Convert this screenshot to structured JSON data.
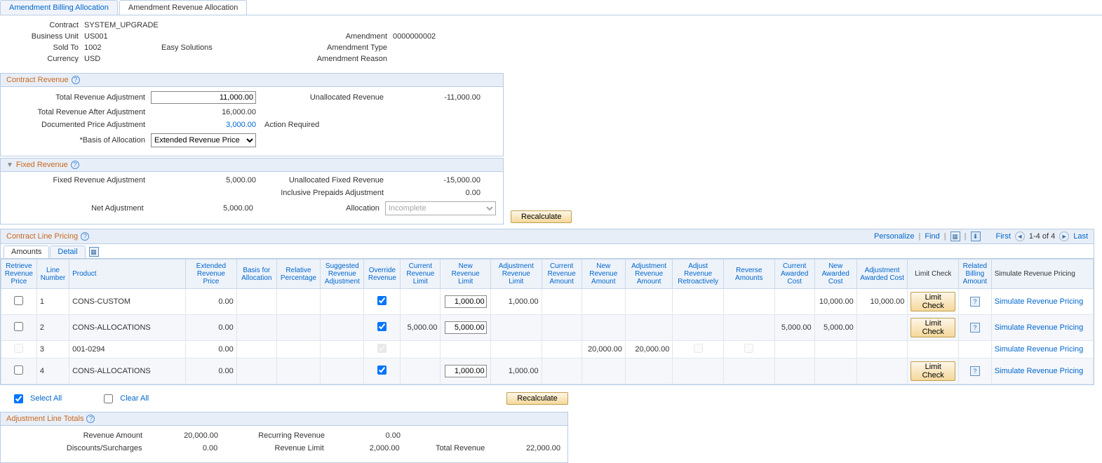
{
  "tabs": {
    "billing": "Amendment Billing Allocation",
    "revenue": "Amendment Revenue Allocation"
  },
  "header": {
    "contract_label": "Contract",
    "contract": "SYSTEM_UPGRADE",
    "bu_label": "Business Unit",
    "bu": "US001",
    "amendment_label": "Amendment",
    "amendment": "0000000002",
    "sold_to_label": "Sold To",
    "sold_to": "1002",
    "sold_to_name": "Easy Solutions",
    "amendment_type_label": "Amendment Type",
    "amendment_type": "",
    "currency_label": "Currency",
    "currency": "USD",
    "amendment_reason_label": "Amendment Reason",
    "amendment_reason": ""
  },
  "contract_revenue": {
    "title": "Contract Revenue",
    "total_rev_adj_label": "Total Revenue Adjustment",
    "total_rev_adj": "11,000.00",
    "unalloc_rev_label": "Unallocated Revenue",
    "unalloc_rev": "-11,000.00",
    "total_rev_after_label": "Total Revenue After Adjustment",
    "total_rev_after": "16,000.00",
    "doc_price_adj_label": "Documented Price Adjustment",
    "doc_price_adj": "3,000.00",
    "action_required": "Action Required",
    "basis_label": "*Basis of Allocation",
    "basis_value": "Extended Revenue Price"
  },
  "fixed_revenue": {
    "title": "Fixed Revenue",
    "fixed_rev_adj_label": "Fixed Revenue Adjustment",
    "fixed_rev_adj": "5,000.00",
    "unalloc_fixed_label": "Unallocated Fixed Revenue",
    "unalloc_fixed": "-15,000.00",
    "incl_prepaids_label": "Inclusive Prepaids Adjustment",
    "incl_prepaids": "0.00",
    "net_adj_label": "Net Adjustment",
    "net_adj": "5,000.00",
    "allocation_label": "Allocation",
    "allocation_value": "Incomplete",
    "recalculate": "Recalculate"
  },
  "pricing": {
    "title": "Contract Line Pricing",
    "toolbar": {
      "personalize": "Personalize",
      "find": "Find",
      "first": "First",
      "range": "1-4 of 4",
      "last": "Last"
    },
    "subtabs": {
      "amounts": "Amounts",
      "detail": "Detail"
    },
    "cols": {
      "retrieve": "Retrieve Revenue Price",
      "line": "Line Number",
      "product": "Product",
      "ext_price": "Extended Revenue Price",
      "basis": "Basis for Allocation",
      "rel_pct": "Relative Percentage",
      "sugg_adj": "Suggested Revenue Adjustment",
      "override": "Override Revenue",
      "cur_limit": "Current Revenue Limit",
      "new_limit": "New Revenue Limit",
      "adj_limit": "Adjustment Revenue Limit",
      "cur_amt": "Current Revenue Amount",
      "new_amt": "New Revenue Amount",
      "adj_amt": "Adjustment Revenue Amount",
      "retro": "Adjust Revenue Retroactively",
      "reverse": "Reverse Amounts",
      "cur_cost": "Current Awarded Cost",
      "new_cost": "New Awarded Cost",
      "adj_cost": "Adjustment Awarded Cost",
      "limit_check": "Limit Check",
      "rel_bill": "Related Billing Amount",
      "simulate": "Simulate Revenue Pricing"
    },
    "rows": [
      {
        "line": "1",
        "product": "CONS-CUSTOM",
        "ext_price": "0.00",
        "override": true,
        "cur_limit": "",
        "new_limit": "1,000.00",
        "adj_limit": "1,000.00",
        "cur_amt": "",
        "new_amt": "",
        "adj_amt": "",
        "retro": "",
        "reverse": "",
        "cur_cost": "",
        "new_cost": "10,000.00",
        "adj_cost": "10,000.00",
        "limit_btn": true,
        "rel_bill": true,
        "sim": "Simulate Revenue Pricing",
        "check_disabled": false
      },
      {
        "line": "2",
        "product": "CONS-ALLOCATIONS",
        "ext_price": "0.00",
        "override": true,
        "cur_limit": "5,000.00",
        "new_limit": "5,000.00",
        "adj_limit": "",
        "cur_amt": "",
        "new_amt": "",
        "adj_amt": "",
        "retro": "",
        "reverse": "",
        "cur_cost": "5,000.00",
        "new_cost": "5,000.00",
        "adj_cost": "",
        "limit_btn": true,
        "rel_bill": true,
        "sim": "Simulate Revenue Pricing",
        "check_disabled": false
      },
      {
        "line": "3",
        "product": "001-0294",
        "ext_price": "0.00",
        "override": true,
        "cur_limit": "",
        "new_limit": "",
        "adj_limit": "",
        "cur_amt": "",
        "new_amt": "20,000.00",
        "adj_amt": "20,000.00",
        "retro": "box",
        "reverse": "box",
        "cur_cost": "",
        "new_cost": "",
        "adj_cost": "",
        "limit_btn": false,
        "rel_bill": false,
        "sim": "Simulate Revenue Pricing",
        "check_disabled": true
      },
      {
        "line": "4",
        "product": "CONS-ALLOCATIONS",
        "ext_price": "0.00",
        "override": true,
        "cur_limit": "",
        "new_limit": "1,000.00",
        "adj_limit": "1,000.00",
        "cur_amt": "",
        "new_amt": "",
        "adj_amt": "",
        "retro": "",
        "reverse": "",
        "cur_cost": "",
        "new_cost": "",
        "adj_cost": "",
        "limit_btn": true,
        "rel_bill": true,
        "sim": "Simulate Revenue Pricing",
        "check_disabled": false
      }
    ],
    "select_all": "Select All",
    "clear_all": "Clear All",
    "recalculate": "Recalculate",
    "limit_check_btn": "Limit Check"
  },
  "totals": {
    "title": "Adjustment Line Totals",
    "rev_amt_label": "Revenue Amount",
    "rev_amt": "20,000.00",
    "recurring_label": "Recurring Revenue",
    "recurring": "0.00",
    "disc_label": "Discounts/Surcharges",
    "disc": "0.00",
    "rev_limit_label": "Revenue Limit",
    "rev_limit": "2,000.00",
    "total_rev_label": "Total Revenue",
    "total_rev": "22,000.00"
  }
}
